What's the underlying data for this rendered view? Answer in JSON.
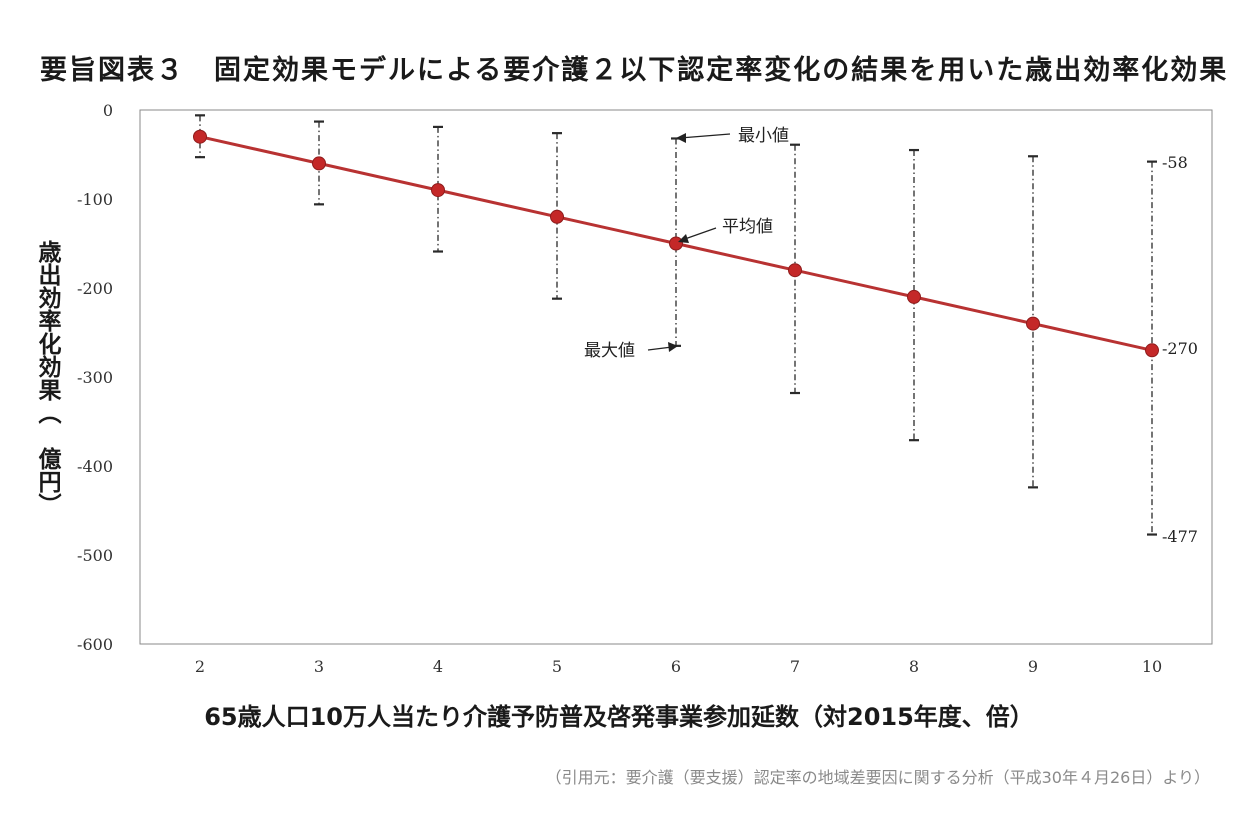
{
  "chart_data": {
    "type": "line",
    "title": "要旨図表３　固定効果モデルによる要介護２以下認定率変化の結果を用いた歳出効率化効果",
    "xlabel": "65歳人口10万人当たり介護予防普及啓発事業参加延数（対2015年度、倍）",
    "ylabel": "歳出効率化効果（　億円）",
    "x": [
      2,
      3,
      4,
      5,
      6,
      7,
      8,
      9,
      10
    ],
    "xticks": [
      "2",
      "3",
      "4",
      "5",
      "6",
      "7",
      "8",
      "9",
      "10"
    ],
    "ylim": [
      -600,
      0
    ],
    "yticks": [
      0,
      -100,
      -200,
      -300,
      -400,
      -500,
      -600
    ],
    "series": [
      {
        "name": "平均値",
        "values": [
          -30,
          -60,
          -90,
          -120,
          -150,
          -180,
          -210,
          -240,
          -270
        ]
      },
      {
        "name": "最小値",
        "values": [
          -6,
          -13,
          -19,
          -26,
          -32,
          -39,
          -45,
          -52,
          -58
        ]
      },
      {
        "name": "最大値",
        "values": [
          -53,
          -106,
          -159,
          -212,
          -265,
          -318,
          -371,
          -424,
          -477
        ]
      }
    ],
    "annotations": {
      "min_label": "最小値",
      "mean_label": "平均値",
      "max_label": "最大値",
      "label_min_end": "-58",
      "label_mean_end": "-270",
      "label_max_end": "-477"
    },
    "colors": {
      "line": "#b83232",
      "marker": "#c42828",
      "errorbar": "#2a2a2a",
      "axis": "#555555"
    },
    "grid": false
  },
  "source": "（引用元：要介護（要支援）認定率の地域差要因に関する分析（平成30年４月26日）より）"
}
